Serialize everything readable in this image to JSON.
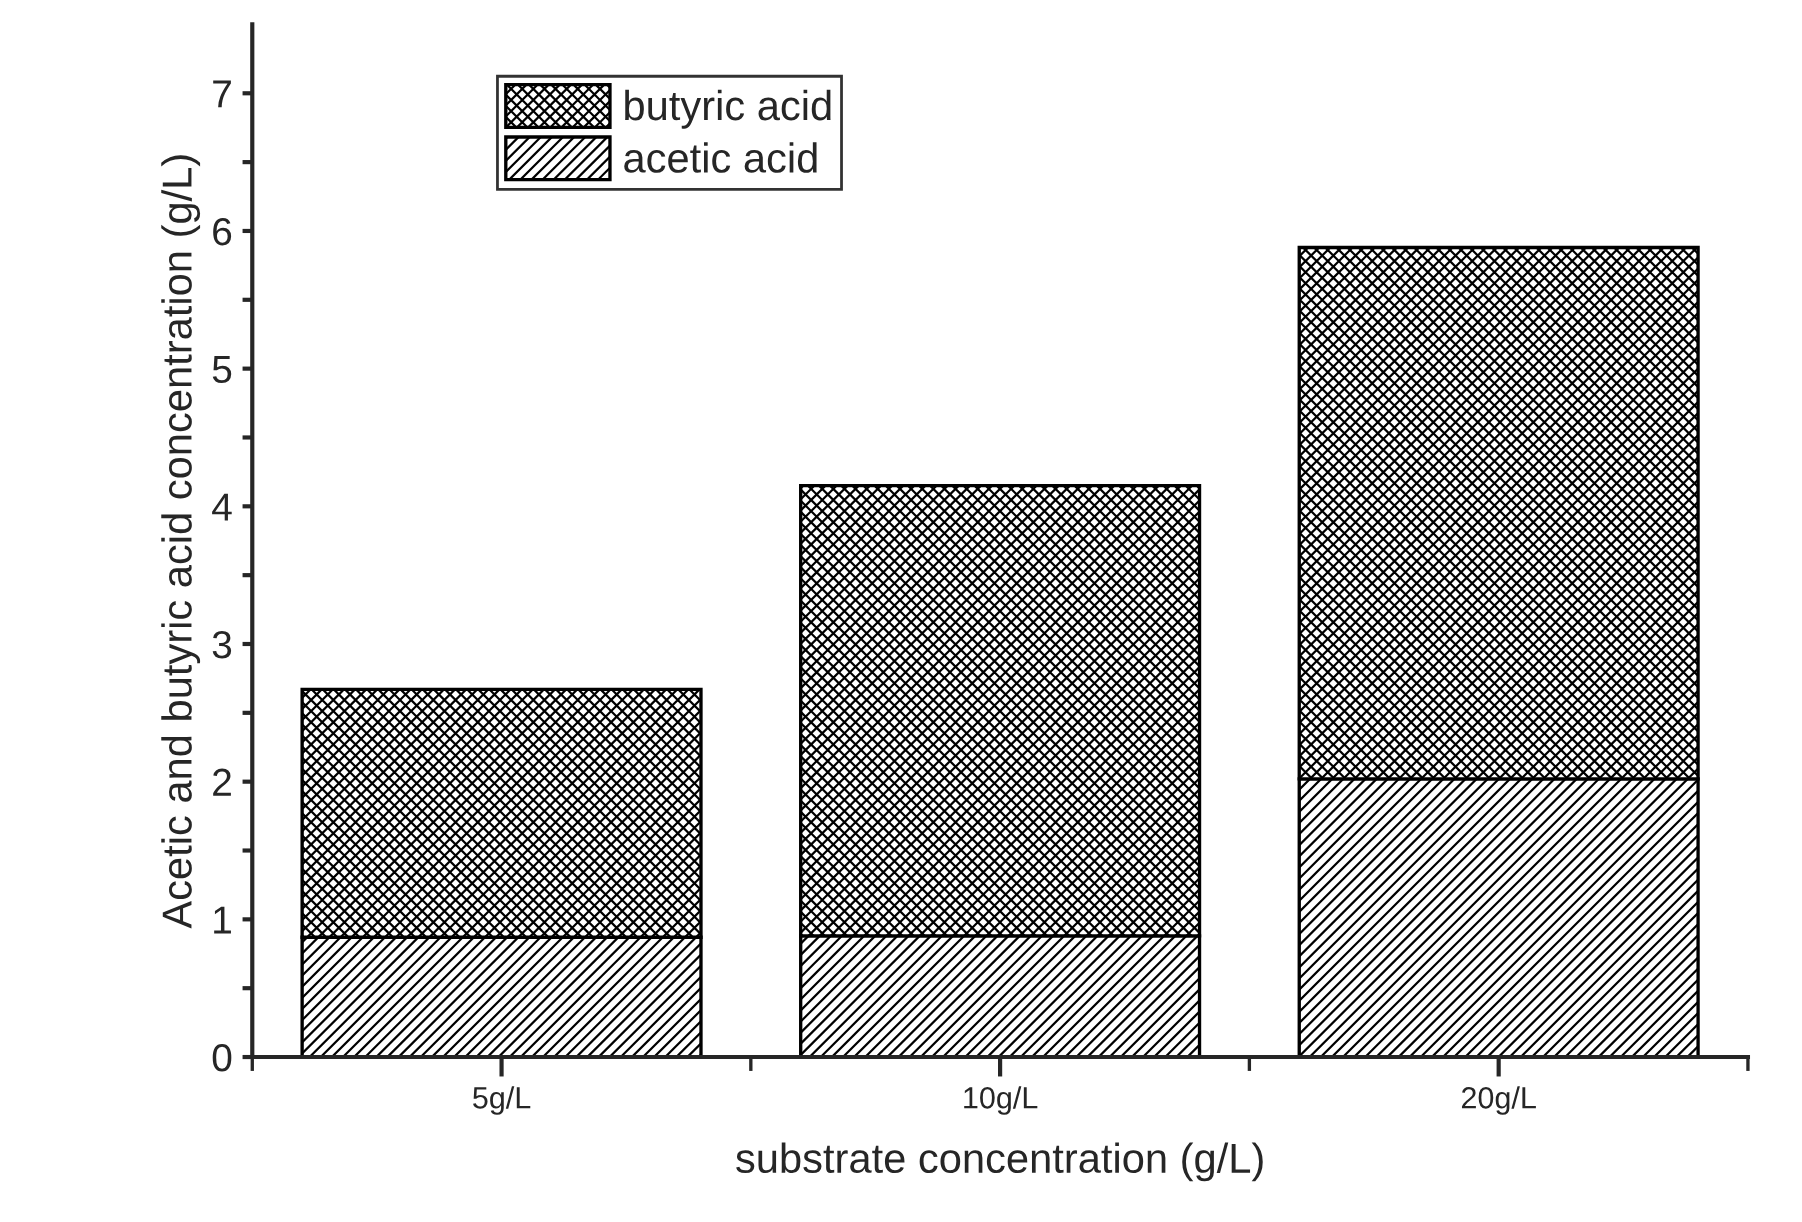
{
  "chart_data": {
    "type": "bar",
    "stacked": true,
    "xlabel": "substrate concentration (g/L)",
    "ylabel": "Acetic and butyric acid concentration (g/L)",
    "categories": [
      "5g/L",
      "10g/L",
      "20g/L"
    ],
    "series": [
      {
        "name": "acetic acid",
        "color": "#000000",
        "values": [
          0.87,
          0.88,
          2.02
        ]
      },
      {
        "name": "butyric acid",
        "color": "#000000",
        "values": [
          1.8,
          3.27,
          3.86
        ]
      }
    ],
    "ylim": [
      0,
      7.5
    ],
    "yticks": [
      0,
      {
        "value": 0.5,
        "label": null
      },
      1,
      {
        "value": 1.5,
        "label": null
      },
      2,
      {
        "value": 2.5,
        "label": null
      },
      3,
      {
        "value": 3.5,
        "label": null
      },
      4,
      {
        "value": 4.5,
        "label": null
      },
      5,
      {
        "value": 5.5,
        "label": null
      },
      6,
      {
        "value": 6.5,
        "label": null
      },
      7
    ],
    "legend": "top left",
    "grid": false
  }
}
